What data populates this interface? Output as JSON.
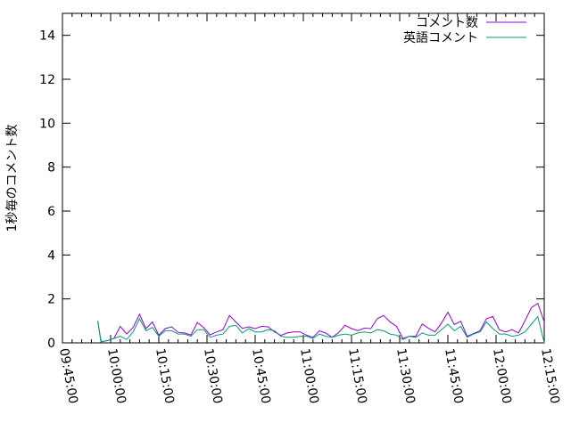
{
  "chart_data": {
    "type": "line",
    "title": "",
    "xlabel": "",
    "ylabel": "1秒毎のコメント数",
    "ylim": [
      0,
      15
    ],
    "yticks": [
      "0",
      "2",
      "4",
      "6",
      "8",
      "10",
      "12",
      "14"
    ],
    "xlim": [
      "09:45:00",
      "12:15:00"
    ],
    "xticks": [
      "09:45:00",
      "10:00:00",
      "10:15:00",
      "10:30:00",
      "10:45:00",
      "11:00:00",
      "11:15:00",
      "11:30:00",
      "11:45:00",
      "12:00:00",
      "12:15:00"
    ],
    "grid": false,
    "legend_position": "top-right",
    "x": [
      "09:56",
      "09:57",
      "09:59",
      "10:01",
      "10:03",
      "10:05",
      "10:07",
      "10:09",
      "10:11",
      "10:13",
      "10:15",
      "10:17",
      "10:19",
      "10:21",
      "10:23",
      "10:25",
      "10:27",
      "10:29",
      "10:31",
      "10:33",
      "10:35",
      "10:37",
      "10:39",
      "10:41",
      "10:43",
      "10:45",
      "10:47",
      "10:49",
      "10:51",
      "10:53",
      "10:55",
      "10:57",
      "10:59",
      "11:01",
      "11:03",
      "11:05",
      "11:07",
      "11:09",
      "11:11",
      "11:13",
      "11:15",
      "11:17",
      "11:19",
      "11:21",
      "11:23",
      "11:25",
      "11:27",
      "11:29",
      "11:31",
      "11:33",
      "11:35",
      "11:37",
      "11:39",
      "11:41",
      "11:43",
      "11:45",
      "11:47",
      "11:49",
      "11:51",
      "11:53",
      "11:55",
      "11:57",
      "11:59",
      "12:01",
      "12:03",
      "12:05",
      "12:07",
      "12:09",
      "12:11",
      "12:13",
      "12:15"
    ],
    "series": [
      {
        "name": "コメント数",
        "color": "#9400d3",
        "values": [
          1.0,
          0.05,
          0.1,
          0.2,
          0.75,
          0.4,
          0.7,
          1.3,
          0.65,
          0.95,
          0.35,
          0.65,
          0.73,
          0.48,
          0.45,
          0.36,
          0.93,
          0.69,
          0.36,
          0.5,
          0.6,
          1.25,
          0.95,
          0.66,
          0.73,
          0.65,
          0.75,
          0.73,
          0.5,
          0.34,
          0.45,
          0.5,
          0.5,
          0.35,
          0.25,
          0.55,
          0.44,
          0.25,
          0.47,
          0.8,
          0.65,
          0.55,
          0.67,
          0.65,
          1.1,
          1.25,
          0.95,
          0.75,
          0.2,
          0.3,
          0.3,
          0.86,
          0.66,
          0.5,
          0.9,
          1.39,
          0.83,
          0.98,
          0.3,
          0.42,
          0.55,
          1.1,
          1.2,
          0.6,
          0.5,
          0.6,
          0.45,
          1.0,
          1.6,
          1.8,
          0.95
        ]
      },
      {
        "name": "英語コメント",
        "color": "#009e73",
        "values": [
          0.97,
          0.05,
          0.1,
          0.2,
          0.3,
          0.15,
          0.5,
          1.1,
          0.55,
          0.7,
          0.3,
          0.55,
          0.55,
          0.4,
          0.4,
          0.3,
          0.6,
          0.6,
          0.25,
          0.35,
          0.4,
          0.75,
          0.8,
          0.45,
          0.65,
          0.5,
          0.5,
          0.6,
          0.55,
          0.3,
          0.25,
          0.25,
          0.3,
          0.3,
          0.2,
          0.4,
          0.3,
          0.25,
          0.35,
          0.4,
          0.35,
          0.45,
          0.5,
          0.45,
          0.6,
          0.55,
          0.4,
          0.35,
          0.15,
          0.3,
          0.25,
          0.45,
          0.35,
          0.35,
          0.6,
          0.85,
          0.55,
          0.75,
          0.25,
          0.4,
          0.5,
          0.95,
          0.65,
          0.4,
          0.4,
          0.3,
          0.35,
          0.5,
          0.85,
          1.2,
          0.0
        ]
      }
    ]
  }
}
